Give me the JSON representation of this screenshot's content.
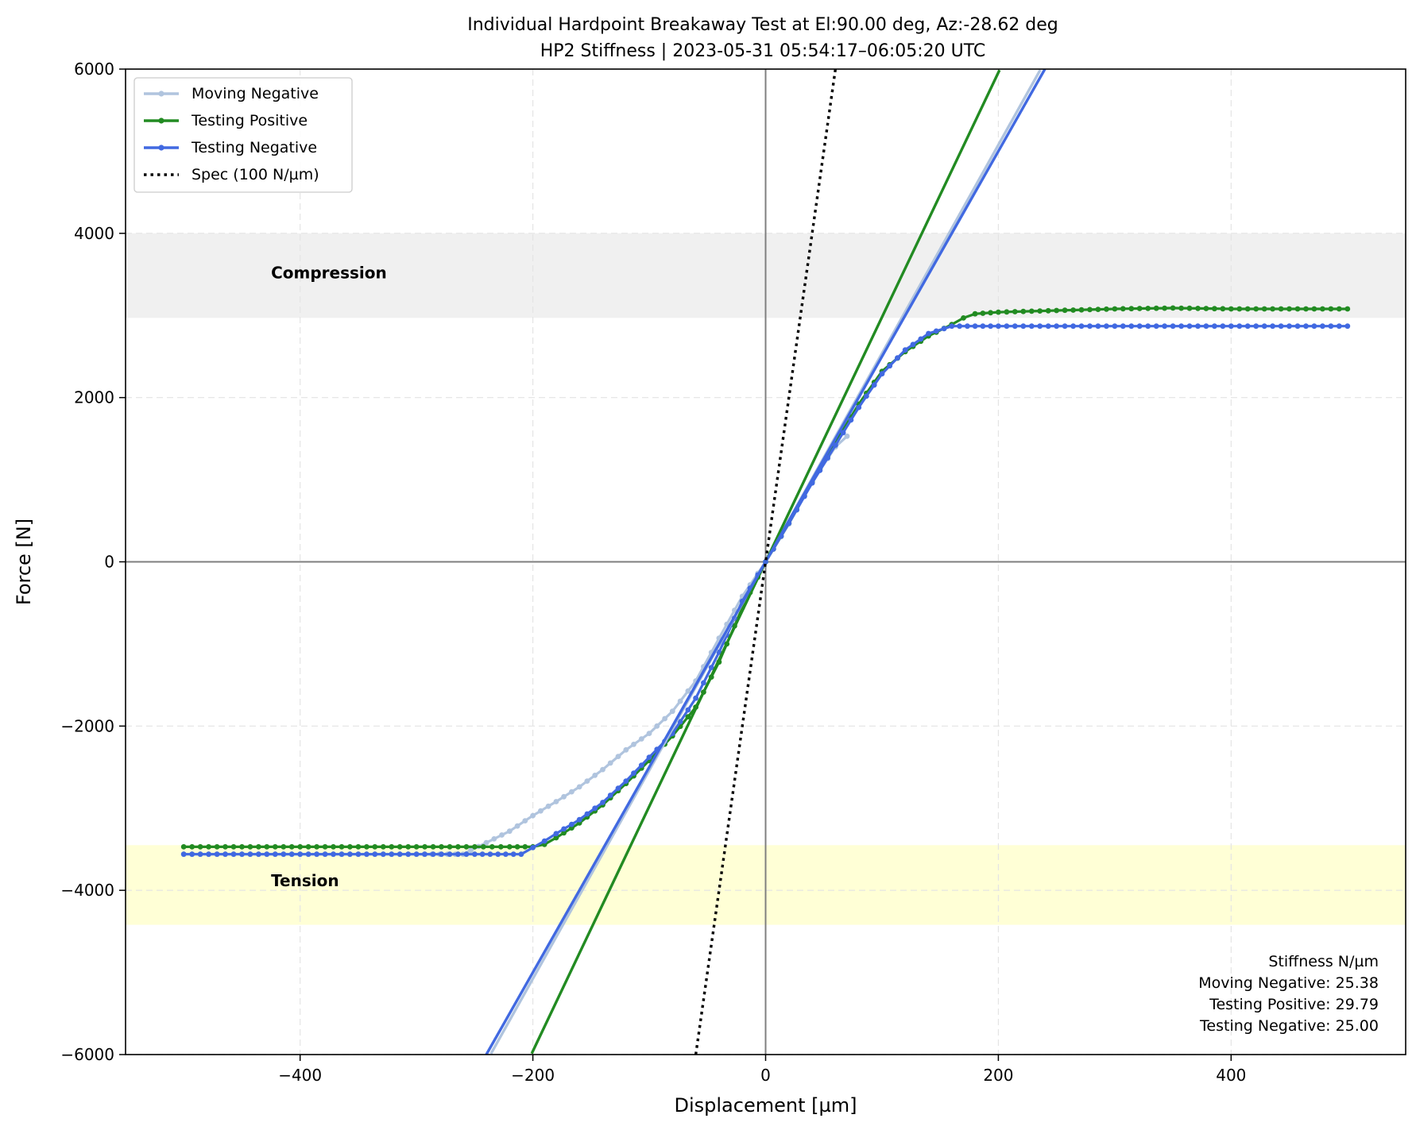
{
  "chart_data": {
    "type": "line",
    "title": "Individual Hardpoint Breakaway Test at El:90.00 deg, Az:-28.62 deg",
    "subtitle": "HP2 Stiffness | 2023-05-31 05:54:17–06:05:20 UTC",
    "xlabel": "Displacement [µm]",
    "ylabel": "Force [N]",
    "xlim": [
      -550,
      550
    ],
    "ylim": [
      -6000,
      6000
    ],
    "xticks": [
      -400,
      -200,
      0,
      200,
      400
    ],
    "yticks": [
      -6000,
      -4000,
      -2000,
      0,
      2000,
      4000,
      6000
    ],
    "xtick_labels": [
      "−400",
      "−200",
      "0",
      "200",
      "400"
    ],
    "ytick_labels": [
      "−6000",
      "−4000",
      "−2000",
      "0",
      "2000",
      "4000",
      "6000"
    ],
    "grid": true,
    "legend_position": "upper-left",
    "bands": [
      {
        "label": "Compression",
        "y_range": [
          2970,
          4000
        ],
        "color": "#f0f0f0",
        "label_x": -425,
        "label_y": 3450
      },
      {
        "label": "Tension",
        "y_range": [
          -4420,
          -3450
        ],
        "color": "#ffffd6",
        "label_x": -425,
        "label_y": -3950
      }
    ],
    "series": [
      {
        "name": "Moving Negative",
        "color": "#b0c4de",
        "kind": "measured",
        "x": [
          -500,
          -400,
          -300,
          -260,
          -240,
          -220,
          -200,
          -180,
          -160,
          -140,
          -120,
          -100,
          -80,
          -60,
          -40,
          -20,
          0,
          20,
          40,
          60,
          70
        ],
        "force": [
          -3560,
          -3560,
          -3560,
          -3560,
          -3420,
          -3280,
          -3090,
          -2920,
          -2740,
          -2530,
          -2290,
          -2090,
          -1820,
          -1450,
          -930,
          -420,
          0,
          460,
          970,
          1400,
          1530
        ]
      },
      {
        "name": "Testing Positive",
        "color": "#228b22",
        "kind": "measured",
        "x": [
          -500,
          -400,
          -300,
          -250,
          -220,
          -200,
          -190,
          -180,
          -160,
          -140,
          -120,
          -100,
          -80,
          -60,
          -40,
          -20,
          0,
          20,
          40,
          60,
          80,
          100,
          120,
          140,
          160,
          170,
          180,
          200,
          250,
          300,
          350,
          400,
          500
        ],
        "force": [
          -3470,
          -3470,
          -3470,
          -3470,
          -3470,
          -3470,
          -3440,
          -3360,
          -3180,
          -2960,
          -2700,
          -2420,
          -2120,
          -1770,
          -1220,
          -560,
          0,
          470,
          970,
          1450,
          1920,
          2320,
          2560,
          2750,
          2890,
          2970,
          3020,
          3040,
          3060,
          3080,
          3090,
          3080,
          3080
        ]
      },
      {
        "name": "Testing Negative",
        "color": "#4169e1",
        "kind": "measured",
        "x": [
          -500,
          -400,
          -300,
          -250,
          -210,
          -200,
          -190,
          -180,
          -160,
          -140,
          -120,
          -100,
          -80,
          -60,
          -40,
          -20,
          0,
          20,
          40,
          60,
          80,
          100,
          120,
          140,
          160,
          200,
          300,
          400,
          500
        ],
        "force": [
          -3560,
          -3560,
          -3560,
          -3560,
          -3560,
          -3480,
          -3400,
          -3310,
          -3140,
          -2930,
          -2670,
          -2380,
          -2090,
          -1660,
          -1100,
          -480,
          0,
          470,
          960,
          1420,
          1880,
          2290,
          2580,
          2780,
          2870,
          2870,
          2870,
          2870,
          2870
        ]
      },
      {
        "name": "Spec (100 N/µm)",
        "color": "#000000",
        "kind": "spec",
        "slope": 100,
        "x": [
          -60,
          60
        ],
        "force": [
          -6000,
          6000
        ]
      }
    ],
    "fits": [
      {
        "series": "Moving Negative",
        "slope": 25.38,
        "color": "#b0c4de",
        "x": [
          -236,
          236
        ]
      },
      {
        "series": "Testing Positive",
        "slope": 29.79,
        "color": "#228b22",
        "x": [
          -201,
          201
        ]
      },
      {
        "series": "Testing Negative",
        "slope": 25.0,
        "color": "#4169e1",
        "x": [
          -240,
          240
        ]
      }
    ],
    "stiffness_box": {
      "title": "Stiffness N/µm",
      "lines": [
        "Moving Negative:  25.38",
        "Testing Positive: 29.79",
        "Testing Negative: 25.00"
      ]
    }
  }
}
